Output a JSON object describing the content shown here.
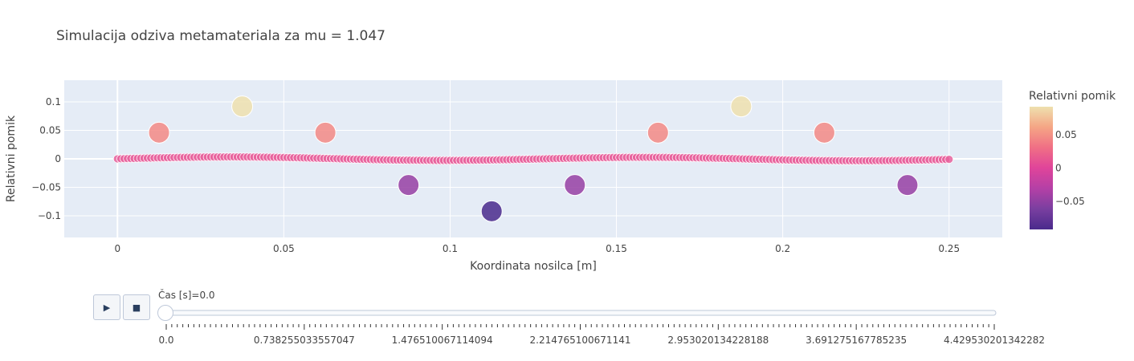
{
  "chart_data": {
    "type": "scatter",
    "title": "Simulacija odziva metamateriala za mu = 1.047",
    "xlabel": "Koordinata nosilca [m]",
    "ylabel": "Relativni pomik",
    "xlim": [
      -0.016,
      0.266
    ],
    "ylim": [
      -0.138,
      0.138
    ],
    "x_ticks": [
      0,
      0.05,
      0.1,
      0.15,
      0.2,
      0.25
    ],
    "y_ticks": [
      -0.1,
      -0.05,
      0,
      0.05,
      0.1
    ],
    "grid": true,
    "colorbar": {
      "title": "Relativni pomik",
      "range": [
        -0.092,
        0.092
      ],
      "ticks": [
        -0.05,
        0,
        0.05
      ],
      "colorscale": [
        "#4a2a8c",
        "#7a3fa0",
        "#b440a6",
        "#e0449a",
        "#f06f85",
        "#f5a585",
        "#eee0ae"
      ]
    },
    "series": [
      {
        "type": "beam",
        "x_start": 0,
        "x_end": 0.25,
        "amplitude": 0.0032,
        "marker_color": "#e8629c"
      },
      {
        "type": "resonators",
        "x": [
          0.0125,
          0.0375,
          0.0625,
          0.0875,
          0.1125,
          0.1375,
          0.1625,
          0.1875,
          0.2125,
          0.2375
        ],
        "y": [
          0.046,
          0.092,
          0.046,
          -0.046,
          -0.092,
          -0.046,
          0.046,
          0.092,
          0.046,
          -0.046
        ]
      }
    ]
  },
  "controls": {
    "play_icon": "▶",
    "stop_icon": "■",
    "slider_label": "Čas [s]=0.0",
    "slider_value": 0.0,
    "slider_ticks": [
      "0.0",
      "0.738255033557047",
      "1.476510067114094",
      "2.214765100671141",
      "2.953020134228188",
      "3.691275167785235",
      "4.429530201342282"
    ]
  }
}
